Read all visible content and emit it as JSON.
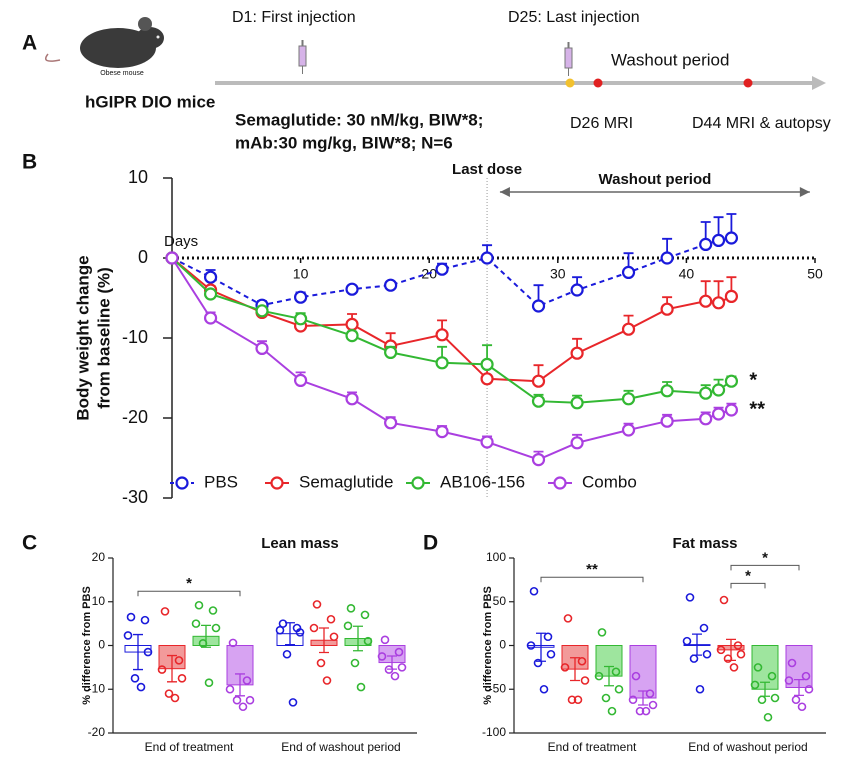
{
  "diagram": {
    "panel_label": "A",
    "first_event": "D1: First injection",
    "last_event": "D25: Last injection",
    "washout": "Washout period",
    "mouse_label": "Obese mouse",
    "model": "hGIPR DIO mice",
    "dosing": [
      "Semaglutide: 30 nM/kg, BIW*8;",
      "mAb:30 mg/kg, BIW*8;  N=6"
    ],
    "mri_1": "D26 MRI",
    "mri_2": "D44 MRI  & autopsy"
  },
  "chart_data": [
    {
      "type": "line",
      "panel_label": "B",
      "ylabel": [
        "Body weight change",
        "from baseline (%)"
      ],
      "xlabel": "Days",
      "x": [
        0,
        3,
        7,
        10,
        14,
        17,
        21,
        24.5,
        28.5,
        31.5,
        35.5,
        38.5,
        41.5,
        42.5,
        43.5
      ],
      "xlim": [
        0,
        50
      ],
      "xticks": [
        10,
        20,
        30,
        40,
        50
      ],
      "ylim": [
        -30,
        10
      ],
      "yticks": [
        -30,
        -20,
        -10,
        0,
        10
      ],
      "vline": {
        "x": 24.5,
        "label": "Last dose"
      },
      "span": {
        "from": 25.5,
        "to": 49.6,
        "label": "Washout period"
      },
      "legend": "bottom",
      "series": [
        {
          "name": "PBS",
          "color": "#1a1adb",
          "linestyle": "dashed",
          "values": [
            0,
            -2.4,
            -5.9,
            -4.9,
            -3.9,
            -3.4,
            -1.4,
            0,
            -6.0,
            -4.0,
            -1.8,
            0,
            1.7,
            2.2,
            2.5
          ],
          "errors": [
            0,
            0.9,
            0.5,
            0.6,
            0.3,
            0.3,
            0.7,
            1.6,
            2.6,
            1.6,
            2.4,
            2.4,
            2.8,
            2.9,
            3.0
          ]
        },
        {
          "name": "Semaglutide",
          "color": "#e8262a",
          "linestyle": "solid",
          "values": [
            0,
            -4.0,
            -6.8,
            -8.5,
            -8.3,
            -11.0,
            -9.6,
            -15.1,
            -15.4,
            -11.9,
            -8.9,
            -6.4,
            -5.4,
            -5.6,
            -4.8
          ],
          "errors": [
            0,
            0.5,
            0.4,
            0.5,
            1.3,
            1.6,
            1.8,
            2.0,
            2.0,
            1.8,
            1.7,
            1.5,
            2.5,
            2.7,
            2.4
          ]
        },
        {
          "name": "AB106-156",
          "color": "#33b833",
          "linestyle": "solid",
          "values": [
            0,
            -4.5,
            -6.6,
            -7.6,
            -9.7,
            -11.8,
            -13.1,
            -13.3,
            -17.9,
            -18.1,
            -17.6,
            -16.6,
            -16.9,
            -16.5,
            -15.4
          ],
          "errors": [
            0,
            0.5,
            0.4,
            0.7,
            0.5,
            0.7,
            2.0,
            2.4,
            0.8,
            0.9,
            1.0,
            1.1,
            1.0,
            1.3,
            0.6
          ],
          "significance": "*"
        },
        {
          "name": "Combo",
          "color": "#aa3fe0",
          "linestyle": "solid",
          "values": [
            0,
            -7.5,
            -11.3,
            -15.3,
            -17.6,
            -20.6,
            -21.7,
            -23.0,
            -25.2,
            -23.1,
            -21.5,
            -20.4,
            -20.1,
            -19.5,
            -19.0
          ],
          "errors": [
            0,
            0.7,
            0.9,
            1.0,
            0.8,
            0.7,
            0.7,
            0.7,
            1.0,
            1.0,
            0.8,
            0.8,
            0.8,
            0.8,
            0.8
          ],
          "significance": "**"
        }
      ]
    },
    {
      "type": "bar",
      "panel_label": "C",
      "title": "Lean mass",
      "ylabel": "% difference from PBS",
      "categories": [
        "End of treatment",
        "End of washout period"
      ],
      "ylim": [
        -20,
        20
      ],
      "yticks": [
        -20,
        -10,
        0,
        10,
        20
      ],
      "series": [
        {
          "name": "PBS",
          "color": "#1a1adb",
          "fill": "#ffffff",
          "values": [
            -1.5,
            2.7
          ],
          "errors": [
            4.0,
            2.5
          ],
          "points": [
            [
              6.5,
              5.8,
              2.3,
              -1.5,
              -7.5,
              -9.5
            ],
            [
              5.0,
              4.0,
              3.5,
              3.0,
              -2.0,
              -13.0
            ]
          ]
        },
        {
          "name": "Semaglutide",
          "color": "#e8262a",
          "fill": "#f29a9a",
          "values": [
            -5.3,
            1.2
          ],
          "errors": [
            3.0,
            2.8
          ],
          "points": [
            [
              7.8,
              -3.4,
              -5.5,
              -7.5,
              -11.0,
              -12.0
            ],
            [
              9.4,
              6.0,
              4.0,
              2.0,
              -4.0,
              -8.0
            ]
          ]
        },
        {
          "name": "AB106-156",
          "color": "#33b833",
          "fill": "#9ee59e",
          "values": [
            2.1,
            1.6
          ],
          "errors": [
            2.5,
            2.8
          ],
          "points": [
            [
              9.2,
              8.0,
              5.0,
              4.0,
              0.5,
              -8.5
            ],
            [
              8.5,
              7.0,
              4.5,
              1.0,
              -4.0,
              -9.5
            ]
          ]
        },
        {
          "name": "Combo",
          "color": "#aa3fe0",
          "fill": "#d7a3f2",
          "values": [
            -9.0,
            -3.9
          ],
          "errors": [
            2.5,
            1.5
          ],
          "points": [
            [
              0.6,
              -8.0,
              -10.0,
              -12.5,
              -12.5,
              -14.0
            ],
            [
              1.3,
              -1.5,
              -2.5,
              -5.0,
              -5.5,
              -7.0
            ]
          ]
        }
      ],
      "significance": [
        {
          "category": "End of treatment",
          "groups": [
            "PBS",
            "Combo"
          ],
          "label": "*"
        }
      ]
    },
    {
      "type": "bar",
      "panel_label": "D",
      "title": "Fat mass",
      "ylabel": "% difference from PBS",
      "categories": [
        "End of treatment",
        "End of washout period"
      ],
      "ylim": [
        -100,
        100
      ],
      "yticks": [
        -100,
        -50,
        0,
        50,
        100
      ],
      "series": [
        {
          "name": "PBS",
          "color": "#1a1adb",
          "fill": "#ffffff",
          "values": [
            -2,
            1
          ],
          "errors": [
            16,
            12
          ],
          "points": [
            [
              62,
              10,
              0,
              -10,
              -20,
              -50
            ],
            [
              55,
              20,
              5,
              -10,
              -15,
              -50
            ]
          ]
        },
        {
          "name": "Semaglutide",
          "color": "#e8262a",
          "fill": "#f29a9a",
          "values": [
            -27,
            -5
          ],
          "errors": [
            13,
            12
          ],
          "points": [
            [
              31,
              -18,
              -25,
              -40,
              -62,
              -62
            ],
            [
              52,
              0,
              -5,
              -10,
              -15,
              -25
            ]
          ]
        },
        {
          "name": "AB106-156",
          "color": "#33b833",
          "fill": "#9ee59e",
          "values": [
            -35,
            -50
          ],
          "errors": [
            11,
            8
          ],
          "points": [
            [
              15,
              -30,
              -35,
              -50,
              -60,
              -75
            ],
            [
              -25,
              -35,
              -45,
              -60,
              -62,
              -82
            ]
          ]
        },
        {
          "name": "Combo",
          "color": "#aa3fe0",
          "fill": "#d7a3f2",
          "values": [
            -60,
            -48
          ],
          "errors": [
            8,
            9
          ],
          "points": [
            [
              -35,
              -55,
              -62,
              -68,
              -75,
              -75
            ],
            [
              -20,
              -35,
              -40,
              -50,
              -62,
              -70
            ]
          ]
        }
      ],
      "significance": [
        {
          "category": "End of treatment",
          "groups": [
            "PBS",
            "Combo"
          ],
          "label": "**"
        },
        {
          "category": "End of washout period",
          "groups": [
            "Semaglutide",
            "AB106-156"
          ],
          "label": "*"
        },
        {
          "category": "End of washout period",
          "groups": [
            "Semaglutide",
            "Combo"
          ],
          "label": "*"
        }
      ]
    }
  ]
}
